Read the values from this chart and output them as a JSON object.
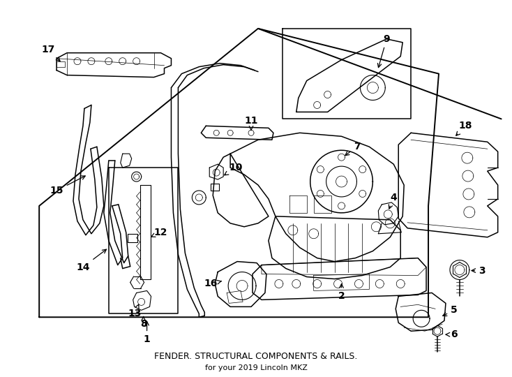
{
  "title": "FENDER. STRUCTURAL COMPONENTS & RAILS.",
  "subtitle": "for your 2019 Lincoln MKZ",
  "bg_color": "#ffffff",
  "line_color": "#000000",
  "fig_width": 7.34,
  "fig_height": 5.4,
  "dpi": 100
}
